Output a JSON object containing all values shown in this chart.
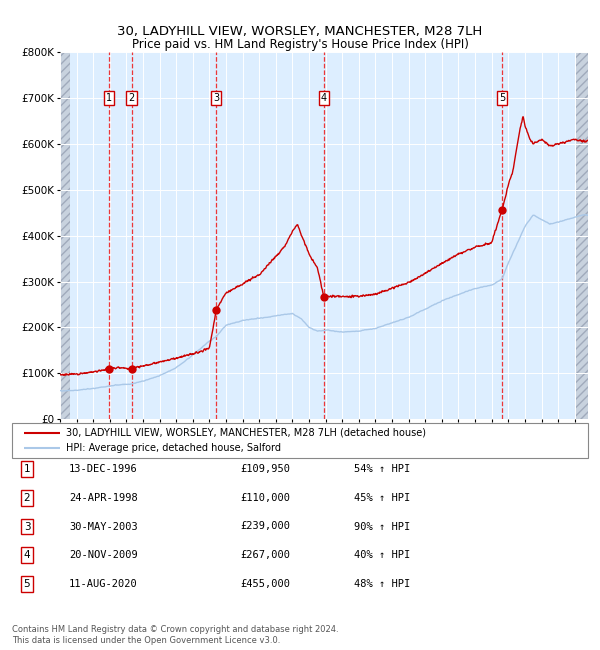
{
  "title_line1": "30, LADYHILL VIEW, WORSLEY, MANCHESTER, M28 7LH",
  "title_line2": "Price paid vs. HM Land Registry's House Price Index (HPI)",
  "sale_label": "30, LADYHILL VIEW, WORSLEY, MANCHESTER, M28 7LH (detached house)",
  "hpi_label": "HPI: Average price, detached house, Salford",
  "transactions": [
    {
      "num": 1,
      "date": "13-DEC-1996",
      "price": 109950,
      "pct": "54%",
      "dir": "↑"
    },
    {
      "num": 2,
      "date": "24-APR-1998",
      "price": 110000,
      "pct": "45%",
      "dir": "↑"
    },
    {
      "num": 3,
      "date": "30-MAY-2003",
      "price": 239000,
      "pct": "90%",
      "dir": "↑"
    },
    {
      "num": 4,
      "date": "20-NOV-2009",
      "price": 267000,
      "pct": "40%",
      "dir": "↑"
    },
    {
      "num": 5,
      "date": "11-AUG-2020",
      "price": 455000,
      "pct": "48%",
      "dir": "↑"
    }
  ],
  "transaction_dates_decimal": [
    1996.95,
    1998.31,
    2003.41,
    2009.89,
    2020.61
  ],
  "transaction_prices": [
    109950,
    110000,
    239000,
    267000,
    455000
  ],
  "sale_color": "#cc0000",
  "hpi_color": "#aac8e8",
  "marker_color": "#cc0000",
  "vline_color": "#ee2222",
  "plot_bg": "#ddeeff",
  "ylim": [
    0,
    800000
  ],
  "xlim_start": 1994.0,
  "xlim_end": 2025.8,
  "footer": "Contains HM Land Registry data © Crown copyright and database right 2024.\nThis data is licensed under the Open Government Licence v3.0.",
  "hpi_base_values": [
    [
      1994.0,
      62000
    ],
    [
      1995.0,
      63000
    ],
    [
      1996.0,
      67000
    ],
    [
      1996.95,
      72000
    ],
    [
      1997.5,
      75000
    ],
    [
      1998.31,
      77000
    ],
    [
      1999.0,
      83000
    ],
    [
      2000.0,
      95000
    ],
    [
      2001.0,
      112000
    ],
    [
      2002.0,
      140000
    ],
    [
      2003.0,
      170000
    ],
    [
      2003.41,
      180000
    ],
    [
      2004.0,
      205000
    ],
    [
      2005.0,
      215000
    ],
    [
      2006.0,
      220000
    ],
    [
      2007.0,
      225000
    ],
    [
      2007.5,
      228000
    ],
    [
      2008.0,
      230000
    ],
    [
      2008.5,
      220000
    ],
    [
      2009.0,
      200000
    ],
    [
      2009.5,
      192000
    ],
    [
      2009.89,
      193000
    ],
    [
      2010.0,
      195000
    ],
    [
      2010.5,
      192000
    ],
    [
      2011.0,
      190000
    ],
    [
      2012.0,
      192000
    ],
    [
      2013.0,
      198000
    ],
    [
      2014.0,
      210000
    ],
    [
      2015.0,
      222000
    ],
    [
      2016.0,
      240000
    ],
    [
      2017.0,
      258000
    ],
    [
      2018.0,
      272000
    ],
    [
      2019.0,
      285000
    ],
    [
      2020.0,
      292000
    ],
    [
      2020.61,
      305000
    ],
    [
      2021.0,
      340000
    ],
    [
      2021.5,
      380000
    ],
    [
      2022.0,
      420000
    ],
    [
      2022.5,
      445000
    ],
    [
      2023.0,
      435000
    ],
    [
      2023.5,
      425000
    ],
    [
      2024.0,
      430000
    ],
    [
      2024.5,
      435000
    ],
    [
      2025.0,
      440000
    ],
    [
      2025.5,
      445000
    ]
  ],
  "sale_indexed_values": [
    [
      1994.0,
      97000
    ],
    [
      1995.0,
      98500
    ],
    [
      1996.0,
      103000
    ],
    [
      1996.95,
      109950
    ],
    [
      1997.5,
      113000
    ],
    [
      1998.31,
      110000
    ],
    [
      1999.0,
      116000
    ],
    [
      2000.0,
      125000
    ],
    [
      2001.0,
      133000
    ],
    [
      2002.0,
      142000
    ],
    [
      2003.0,
      155000
    ],
    [
      2003.41,
      239000
    ],
    [
      2004.0,
      275000
    ],
    [
      2005.0,
      295000
    ],
    [
      2006.0,
      315000
    ],
    [
      2007.0,
      355000
    ],
    [
      2007.5,
      375000
    ],
    [
      2008.0,
      410000
    ],
    [
      2008.3,
      425000
    ],
    [
      2008.5,
      405000
    ],
    [
      2009.0,
      360000
    ],
    [
      2009.5,
      330000
    ],
    [
      2009.89,
      267000
    ],
    [
      2010.0,
      268000
    ],
    [
      2010.5,
      268000
    ],
    [
      2011.0,
      267000
    ],
    [
      2012.0,
      268000
    ],
    [
      2013.0,
      272000
    ],
    [
      2014.0,
      285000
    ],
    [
      2015.0,
      298000
    ],
    [
      2016.0,
      318000
    ],
    [
      2017.0,
      340000
    ],
    [
      2018.0,
      360000
    ],
    [
      2019.0,
      375000
    ],
    [
      2020.0,
      385000
    ],
    [
      2020.61,
      455000
    ],
    [
      2021.0,
      510000
    ],
    [
      2021.3,
      545000
    ],
    [
      2021.5,
      590000
    ],
    [
      2021.7,
      630000
    ],
    [
      2021.9,
      660000
    ],
    [
      2022.0,
      640000
    ],
    [
      2022.3,
      610000
    ],
    [
      2022.5,
      600000
    ],
    [
      2023.0,
      610000
    ],
    [
      2023.5,
      595000
    ],
    [
      2024.0,
      600000
    ],
    [
      2024.5,
      605000
    ],
    [
      2025.0,
      610000
    ],
    [
      2025.5,
      605000
    ]
  ]
}
